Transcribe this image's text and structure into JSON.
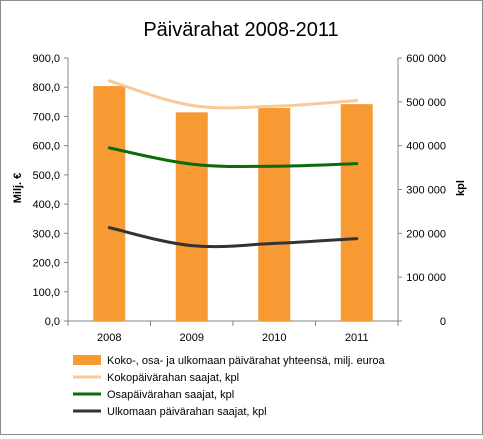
{
  "chart_data": {
    "type": "bar",
    "title": "Päivärahat 2008-2011",
    "categories": [
      "2008",
      "2009",
      "2010",
      "2011"
    ],
    "ylabel": "Milj. €",
    "y2label": "kpl",
    "ylim": [
      0,
      900
    ],
    "y2lim": [
      0,
      600000
    ],
    "yticks": [
      "0,0",
      "100,0",
      "200,0",
      "300,0",
      "400,0",
      "500,0",
      "600,0",
      "700,0",
      "800,0",
      "900,0"
    ],
    "y2ticks": [
      "0",
      "100 000",
      "200 000",
      "300 000",
      "400 000",
      "500 000",
      "600 000"
    ],
    "grid": false,
    "legend_position": "bottom",
    "series": [
      {
        "name": "Koko-, osa- ja ulkomaan päivärahat yhteensä, milj. euroa",
        "type": "bar",
        "axis": "left",
        "color": "#f79a34",
        "values": [
          804,
          714,
          729,
          742
        ]
      },
      {
        "name": "Kokopäivärahan saajat,  kpl",
        "type": "line",
        "axis": "right",
        "color": "#fac99a",
        "values": [
          548000,
          492000,
          490000,
          503000
        ]
      },
      {
        "name": "Osapäivärahan saajat, kpl",
        "type": "line",
        "axis": "right",
        "color": "#0b6b0b",
        "values": [
          395000,
          358000,
          353000,
          359000
        ]
      },
      {
        "name": "Ulkomaan päivärahan saajat,  kpl",
        "type": "line",
        "axis": "right",
        "color": "#333333",
        "values": [
          213000,
          172000,
          177000,
          188000
        ]
      }
    ]
  }
}
